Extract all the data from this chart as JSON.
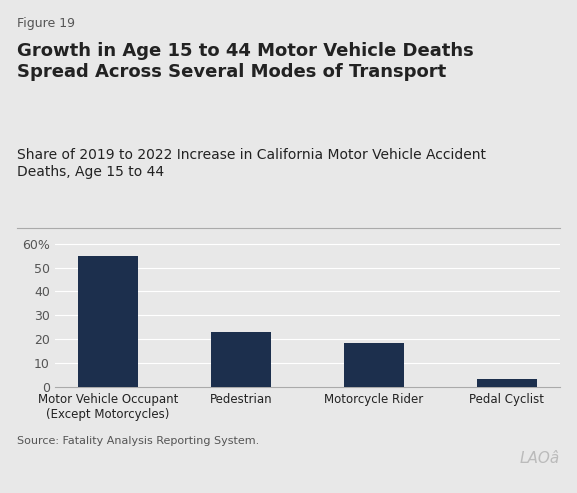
{
  "figure_label": "Figure 19",
  "title": "Growth in Age 15 to 44 Motor Vehicle Deaths\nSpread Across Several Modes of Transport",
  "subtitle": "Share of 2019 to 2022 Increase in California Motor Vehicle Accident\nDeaths, Age 15 to 44",
  "categories": [
    "Motor Vehicle Occupant\n(Except Motorcycles)",
    "Pedestrian",
    "Motorcycle Rider",
    "Pedal Cyclist"
  ],
  "values": [
    55,
    23,
    18.5,
    3.5
  ],
  "bar_color": "#1c2f4d",
  "background_color": "#e8e8e8",
  "ylim": [
    0,
    65
  ],
  "yticks": [
    0,
    10,
    20,
    30,
    40,
    50,
    60
  ],
  "ytick_labels": [
    "0",
    "10",
    "20",
    "30",
    "40",
    "50",
    "60%"
  ],
  "source_text": "Source: Fatality Analysis Reporting System.",
  "figure_label_fontsize": 9,
  "title_fontsize": 13,
  "subtitle_fontsize": 10,
  "tick_fontsize": 9,
  "xtick_fontsize": 8.5,
  "source_fontsize": 8,
  "bar_width": 0.45,
  "grid_color": "#ffffff",
  "spine_color": "#aaaaaa",
  "text_color": "#222222",
  "muted_text_color": "#555555",
  "logo_color": "#bbbbbb"
}
